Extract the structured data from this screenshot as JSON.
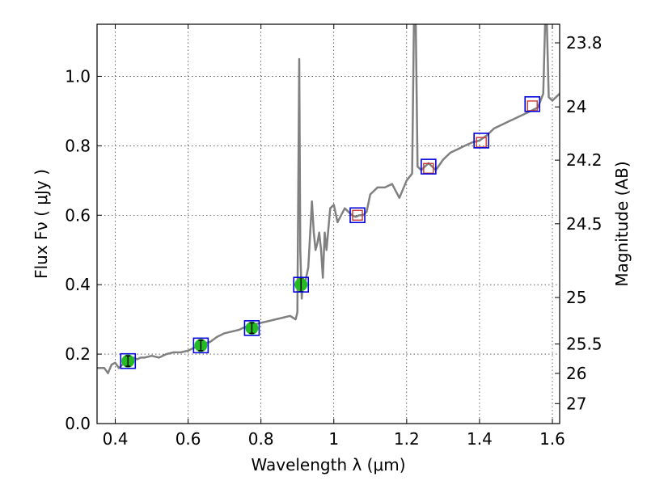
{
  "chart_data": {
    "type": "line",
    "xlabel": "Wavelength  λ (μm)",
    "ylabel": "Flux  Fν  ( μJy )",
    "ylabel_right": "Magnitude (AB)",
    "xlim": [
      0.35,
      1.62
    ],
    "ylim": [
      0.0,
      1.15
    ],
    "grid": true,
    "x_ticks": [
      0.4,
      0.6,
      0.8,
      1.0,
      1.2,
      1.4,
      1.6
    ],
    "x_tick_labels": [
      "0.4",
      "0.6",
      "0.8",
      "1",
      "1.2",
      "1.4",
      "1.6"
    ],
    "y_ticks": [
      0.0,
      0.2,
      0.4,
      0.6,
      0.8,
      1.0
    ],
    "y_tick_labels": [
      "0.0",
      "0.2",
      "0.4",
      "0.6",
      "0.8",
      "1.0"
    ],
    "right_ticks": [
      23.8,
      24,
      24.2,
      24.5,
      25,
      25.5,
      26,
      27
    ],
    "right_tick_labels": [
      "23.8",
      "24",
      "24.2",
      "24.5",
      "25",
      "25.5",
      "26",
      "27"
    ],
    "colors": {
      "model": "#808080",
      "photometry": "#22bb22",
      "model_photometry": "#0000dd",
      "synthetic": "#cc3333"
    },
    "series": [
      {
        "kind": "model-spectrum",
        "x": [
          0.35,
          0.37,
          0.38,
          0.39,
          0.4,
          0.41,
          0.42,
          0.43,
          0.44,
          0.45,
          0.46,
          0.47,
          0.48,
          0.5,
          0.52,
          0.54,
          0.56,
          0.58,
          0.6,
          0.61,
          0.62,
          0.63,
          0.64,
          0.66,
          0.68,
          0.7,
          0.72,
          0.74,
          0.76,
          0.78,
          0.8,
          0.82,
          0.84,
          0.86,
          0.88,
          0.895,
          0.9,
          0.905,
          0.908,
          0.912,
          0.916,
          0.92,
          0.93,
          0.94,
          0.945,
          0.95,
          0.955,
          0.96,
          0.965,
          0.97,
          0.975,
          0.98,
          0.99,
          1.0,
          1.01,
          1.02,
          1.03,
          1.04,
          1.05,
          1.06,
          1.07,
          1.08,
          1.09,
          1.1,
          1.12,
          1.14,
          1.16,
          1.18,
          1.2,
          1.215,
          1.22,
          1.225,
          1.23,
          1.24,
          1.25,
          1.26,
          1.27,
          1.28,
          1.3,
          1.32,
          1.34,
          1.36,
          1.38,
          1.4,
          1.42,
          1.44,
          1.46,
          1.48,
          1.5,
          1.52,
          1.54,
          1.56,
          1.575,
          1.58,
          1.585,
          1.59,
          1.6,
          1.61,
          1.62
        ],
        "y": [
          0.16,
          0.16,
          0.145,
          0.17,
          0.175,
          0.16,
          0.17,
          0.18,
          0.175,
          0.19,
          0.185,
          0.19,
          0.19,
          0.195,
          0.19,
          0.2,
          0.205,
          0.205,
          0.21,
          0.215,
          0.22,
          0.225,
          0.23,
          0.235,
          0.25,
          0.26,
          0.265,
          0.27,
          0.28,
          0.285,
          0.29,
          0.295,
          0.3,
          0.305,
          0.31,
          0.3,
          0.32,
          1.05,
          0.5,
          0.36,
          0.42,
          0.4,
          0.45,
          0.64,
          0.55,
          0.5,
          0.52,
          0.55,
          0.5,
          0.42,
          0.55,
          0.5,
          0.62,
          0.63,
          0.58,
          0.6,
          0.62,
          0.61,
          0.6,
          0.595,
          0.6,
          0.6,
          0.61,
          0.66,
          0.68,
          0.68,
          0.69,
          0.65,
          0.7,
          0.72,
          1.15,
          1.15,
          0.74,
          0.73,
          0.74,
          0.75,
          0.74,
          0.73,
          0.76,
          0.78,
          0.79,
          0.8,
          0.81,
          0.815,
          0.83,
          0.85,
          0.86,
          0.87,
          0.88,
          0.89,
          0.9,
          0.91,
          0.95,
          1.15,
          1.15,
          0.94,
          0.93,
          0.94,
          0.95
        ]
      },
      {
        "kind": "photometry",
        "x": [
          0.435,
          0.635,
          0.775,
          0.91
        ],
        "y": [
          0.18,
          0.225,
          0.275,
          0.4
        ],
        "yerr": [
          0.015,
          0.015,
          0.015,
          0.02
        ]
      },
      {
        "kind": "model-photometry",
        "x": [
          0.435,
          0.635,
          0.775,
          0.91,
          1.065,
          1.26,
          1.405,
          1.545
        ],
        "y": [
          0.18,
          0.225,
          0.275,
          0.4,
          0.6,
          0.74,
          0.815,
          0.92
        ]
      },
      {
        "kind": "synthetic",
        "x": [
          1.065,
          1.26,
          1.405,
          1.545
        ],
        "y": [
          0.6,
          0.735,
          0.81,
          0.915
        ]
      }
    ]
  }
}
